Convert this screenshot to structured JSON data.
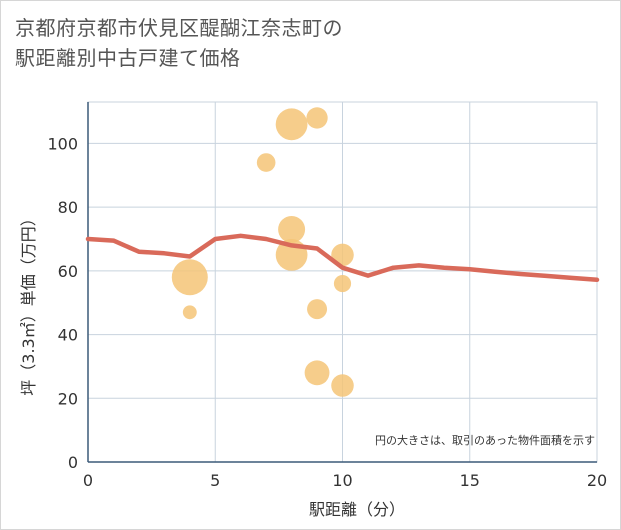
{
  "chart_data": {
    "type": "scatter",
    "title": [
      "京都府京都市伏見区醍醐江奈志町の",
      "駅距離別中古戸建て価格"
    ],
    "xlabel": "駅距離（分）",
    "ylabel": "坪（3.3㎡）単価（万円）",
    "xlim": [
      0,
      20
    ],
    "ylim": [
      0,
      113
    ],
    "xticks": [
      0,
      5,
      10,
      15,
      20
    ],
    "yticks": [
      0,
      20,
      40,
      60,
      80,
      100
    ],
    "grid": true,
    "annotation": "円の大きさは、取引のあった物件面積を示す",
    "points": [
      {
        "x": 4,
        "y": 58,
        "size": 5
      },
      {
        "x": 4,
        "y": 47,
        "size": 1
      },
      {
        "x": 7,
        "y": 94,
        "size": 1.6
      },
      {
        "x": 8,
        "y": 106,
        "size": 4
      },
      {
        "x": 8,
        "y": 73,
        "size": 3
      },
      {
        "x": 8,
        "y": 65,
        "size": 4
      },
      {
        "x": 9,
        "y": 108,
        "size": 2
      },
      {
        "x": 9,
        "y": 48,
        "size": 1.8
      },
      {
        "x": 9,
        "y": 28,
        "size": 2.6
      },
      {
        "x": 10,
        "y": 65,
        "size": 2.2
      },
      {
        "x": 10,
        "y": 56,
        "size": 1.4
      },
      {
        "x": 10,
        "y": 24,
        "size": 2.2
      }
    ],
    "trend": {
      "x": [
        0,
        1,
        2,
        3,
        4,
        5,
        6,
        7,
        8,
        9,
        10,
        11,
        12,
        13,
        14,
        15,
        16,
        17,
        18,
        19,
        20
      ],
      "y": [
        70,
        69.5,
        66,
        65.5,
        64.5,
        70,
        71,
        70,
        68,
        67,
        61,
        58.5,
        61,
        61.7,
        61,
        60.5,
        59.7,
        59,
        58.4,
        57.8,
        57.2
      ]
    },
    "colors": {
      "bubble": "#f5c477",
      "trend": "#d96a5a",
      "grid": "#c8d3de",
      "axis": "#3c5a78"
    }
  }
}
